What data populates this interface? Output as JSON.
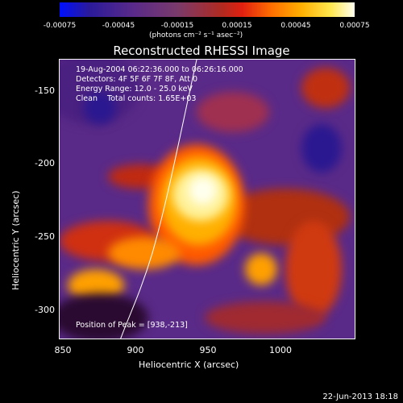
{
  "colorbar": {
    "ticks": [
      "-0.00075",
      "-0.00045",
      "-0.00015",
      "0.00015",
      "0.00045",
      "0.00075"
    ],
    "unit": "(photons cm⁻² s⁻¹ asec⁻²)"
  },
  "plot": {
    "title": "Reconstructed RHESSI Image",
    "info": {
      "line1": "19-Aug-2004 06:22:36.000 to 06:26:16.000",
      "line2": "Detectors: 4F 5F 6F 7F 8F, Att 0",
      "line3": "Energy Range: 12.0 - 25.0 keV",
      "line4": "Clean    Total counts: 1.65E+03"
    },
    "peak": "Position of Peak = [938,-213]",
    "y_ticks": [
      "-150",
      "-200",
      "-250",
      "-300"
    ],
    "x_ticks": [
      "850",
      "900",
      "950",
      "1000"
    ],
    "xlabel": "Heliocentric X (arcsec)",
    "ylabel": "Heliocentric Y (arcsec)"
  },
  "footer": {
    "timestamp": "22-Jun-2013 18:18"
  },
  "colors": {
    "background": "#000000",
    "axes": "#ffffff"
  }
}
